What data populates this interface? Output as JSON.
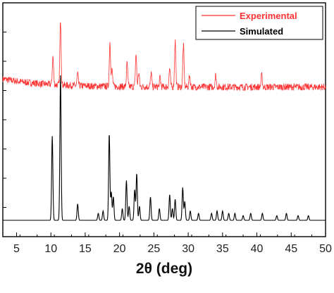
{
  "chart_data": {
    "type": "line",
    "title": "",
    "xlabel": "2θ (deg)",
    "ylabel": "",
    "xlim": [
      3,
      50
    ],
    "ylim": [
      0,
      1
    ],
    "x_ticks": [
      5,
      10,
      15,
      20,
      25,
      30,
      35,
      40,
      45,
      50
    ],
    "grid": false,
    "legend_position": "top-right",
    "series": [
      {
        "name": "Experimental",
        "color": "#ff3333",
        "baseline": 0.64,
        "noise": 0.03,
        "peaks": [
          {
            "x": 10.3,
            "h": 0.12
          },
          {
            "x": 11.4,
            "h": 0.28
          },
          {
            "x": 13.9,
            "h": 0.05
          },
          {
            "x": 18.6,
            "h": 0.19
          },
          {
            "x": 18.9,
            "h": 0.07
          },
          {
            "x": 21.1,
            "h": 0.1
          },
          {
            "x": 22.4,
            "h": 0.14
          },
          {
            "x": 22.8,
            "h": 0.06
          },
          {
            "x": 24.6,
            "h": 0.06
          },
          {
            "x": 25.9,
            "h": 0.04
          },
          {
            "x": 27.3,
            "h": 0.08
          },
          {
            "x": 28.1,
            "h": 0.2
          },
          {
            "x": 29.3,
            "h": 0.18
          },
          {
            "x": 30.2,
            "h": 0.05
          },
          {
            "x": 34.0,
            "h": 0.05
          },
          {
            "x": 40.7,
            "h": 0.05
          }
        ]
      },
      {
        "name": "Simulated",
        "color": "#000000",
        "baseline": 0.07,
        "noise": 0,
        "peaks": [
          {
            "x": 10.2,
            "h": 0.36
          },
          {
            "x": 11.4,
            "h": 0.62
          },
          {
            "x": 13.9,
            "h": 0.07
          },
          {
            "x": 16.9,
            "h": 0.03
          },
          {
            "x": 17.6,
            "h": 0.04
          },
          {
            "x": 18.5,
            "h": 0.37
          },
          {
            "x": 18.8,
            "h": 0.12
          },
          {
            "x": 19.1,
            "h": 0.1
          },
          {
            "x": 20.4,
            "h": 0.05
          },
          {
            "x": 21.0,
            "h": 0.17
          },
          {
            "x": 21.4,
            "h": 0.06
          },
          {
            "x": 22.2,
            "h": 0.13
          },
          {
            "x": 22.5,
            "h": 0.2
          },
          {
            "x": 22.9,
            "h": 0.06
          },
          {
            "x": 24.5,
            "h": 0.1
          },
          {
            "x": 25.8,
            "h": 0.05
          },
          {
            "x": 27.3,
            "h": 0.11
          },
          {
            "x": 27.7,
            "h": 0.05
          },
          {
            "x": 28.1,
            "h": 0.09
          },
          {
            "x": 29.2,
            "h": 0.14
          },
          {
            "x": 29.5,
            "h": 0.08
          },
          {
            "x": 30.3,
            "h": 0.04
          },
          {
            "x": 31.5,
            "h": 0.03
          },
          {
            "x": 33.4,
            "h": 0.03
          },
          {
            "x": 34.2,
            "h": 0.04
          },
          {
            "x": 35.0,
            "h": 0.04
          },
          {
            "x": 35.9,
            "h": 0.03
          },
          {
            "x": 36.8,
            "h": 0.03
          },
          {
            "x": 38.0,
            "h": 0.02
          },
          {
            "x": 39.1,
            "h": 0.03
          },
          {
            "x": 40.8,
            "h": 0.03
          },
          {
            "x": 42.9,
            "h": 0.02
          },
          {
            "x": 44.3,
            "h": 0.03
          },
          {
            "x": 46.0,
            "h": 0.02
          },
          {
            "x": 47.5,
            "h": 0.02
          }
        ]
      }
    ]
  }
}
